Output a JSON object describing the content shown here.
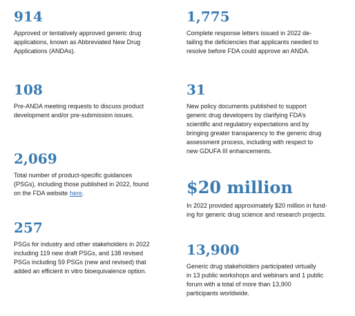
{
  "stats": [
    {
      "value": "914",
      "lines": [
        "Approved or tentatively approved generic drug",
        "applications, known as Abbreviated New Drug",
        "Applications (ANDAs)."
      ]
    },
    {
      "value": "1,775",
      "lines": [
        "Complete response letters issued in 2022 de-",
        "tailing the deficiencies that applicants needed to",
        "resolve before FDA could approve an ANDA."
      ]
    },
    {
      "value": "108",
      "lines": [
        "Pre-ANDA meeting requests to discuss product",
        "development and/or pre-submission issues."
      ]
    },
    {
      "value": "31",
      "lines": [
        "New policy documents published to support",
        "generic drug developers by clarifying FDA’s",
        "scientific and regulatory expectations and by",
        "bringing greater transparency to the generic drug",
        "assessment process, including with respect to",
        "new GDUFA III enhancements."
      ]
    },
    {
      "value": "2,069",
      "lines": [
        "Total number of product-specific guidances",
        "(PSGs), including those published in 2022, found"
      ],
      "last_line": "on the FDA website",
      "link": "here",
      "after_link": "."
    },
    {
      "value": "$20 million",
      "lines": [
        "In 2022 provided approximately $20 million in fund-",
        "ing for generic drug science and research projects."
      ]
    },
    {
      "value": "257",
      "lines": [
        "PSGs for industry and other stakeholders in 2022",
        "including 119 new draft PSGs, and 138 revised",
        "PSGs including 59 PSGs (new and revised) that",
        "added an efficient in vitro bioequivalence option."
      ]
    },
    {
      "value": "13,900",
      "lines": [
        "Generic drug stakeholders participated virtually",
        "in 13 public workshops and webinars and 1 public",
        "forum with a total of more than 13,900",
        "participants worldwide."
      ]
    }
  ]
}
